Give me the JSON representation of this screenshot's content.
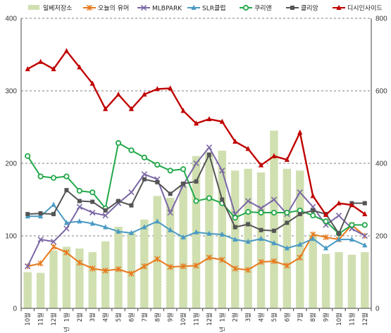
{
  "chart_data": {
    "type": "bar+line",
    "categories": [
      "10월",
      "11월",
      "12월",
      "1월",
      "2월",
      "3월",
      "4월",
      "5월",
      "6월",
      "7월",
      "8월",
      "9월",
      "10월",
      "11월",
      "12월",
      "1월",
      "2월",
      "3월",
      "4월",
      "5월",
      "6월",
      "7월",
      "8월",
      "9월",
      "10월",
      "11월",
      "12월"
    ],
    "year_markers": [
      {
        "index": 3,
        "label": "년"
      },
      {
        "index": 15,
        "label": "년"
      }
    ],
    "y_left": {
      "min": 0,
      "max": 400,
      "ticks": [
        0,
        100,
        200,
        300,
        400
      ]
    },
    "y_right": {
      "min": 0,
      "max": 800,
      "ticks": [
        0,
        200,
        400,
        600,
        800
      ]
    },
    "grid": true,
    "legend_position": "top",
    "bar_series": {
      "name": "일베저장소",
      "axis": "right",
      "color": "#d6e4b8",
      "values": [
        100,
        98,
        160,
        170,
        165,
        155,
        185,
        225,
        210,
        245,
        310,
        305,
        340,
        420,
        430,
        435,
        380,
        385,
        375,
        490,
        385,
        380,
        205,
        150,
        155,
        148,
        155
      ]
    },
    "line_series": [
      {
        "name": "오늘의 유머",
        "color": "#e87a1e",
        "marker": "star",
        "axis": "left",
        "values": [
          58,
          62,
          85,
          77,
          63,
          55,
          52,
          54,
          48,
          58,
          68,
          57,
          58,
          59,
          70,
          67,
          55,
          53,
          64,
          65,
          59,
          70,
          102,
          98,
          95,
          115,
          100
        ]
      },
      {
        "name": "MLBPARK",
        "color": "#7b68a6",
        "marker": "x",
        "axis": "left",
        "values": [
          58,
          95,
          92,
          110,
          140,
          132,
          128,
          145,
          160,
          185,
          178,
          132,
          170,
          200,
          222,
          190,
          130,
          148,
          138,
          150,
          130,
          160,
          140,
          115,
          128,
          110,
          100
        ]
      },
      {
        "name": "SLR클럽",
        "color": "#4a9ac4",
        "marker": "triangle",
        "axis": "left",
        "values": [
          127,
          127,
          143,
          118,
          120,
          117,
          112,
          106,
          104,
          112,
          120,
          108,
          98,
          105,
          103,
          102,
          95,
          92,
          96,
          90,
          83,
          88,
          96,
          83,
          95,
          95,
          87
        ]
      },
      {
        "name": "쿠리앤",
        "color": "#22a84a",
        "marker": "circle-open",
        "axis": "left",
        "values": [
          210,
          182,
          180,
          182,
          162,
          160,
          138,
          228,
          218,
          208,
          198,
          190,
          192,
          148,
          152,
          145,
          125,
          133,
          132,
          132,
          132,
          135,
          128,
          120,
          103,
          115,
          115
        ]
      },
      {
        "name": "클리앙",
        "color": "#555555",
        "marker": "square",
        "axis": "left",
        "values": [
          130,
          131,
          130,
          163,
          148,
          147,
          135,
          148,
          142,
          178,
          174,
          158,
          172,
          175,
          212,
          150,
          112,
          116,
          108,
          107,
          118,
          130,
          135,
          130,
          103,
          145,
          145
        ]
      },
      {
        "name": "디시인사이드",
        "color": "#c00000",
        "marker": "triangle",
        "axis": "right",
        "values": [
          660,
          680,
          660,
          710,
          665,
          620,
          550,
          590,
          550,
          590,
          605,
          607,
          545,
          510,
          522,
          515,
          460,
          440,
          395,
          420,
          410,
          485,
          310,
          258,
          290,
          285,
          260
        ]
      }
    ]
  }
}
